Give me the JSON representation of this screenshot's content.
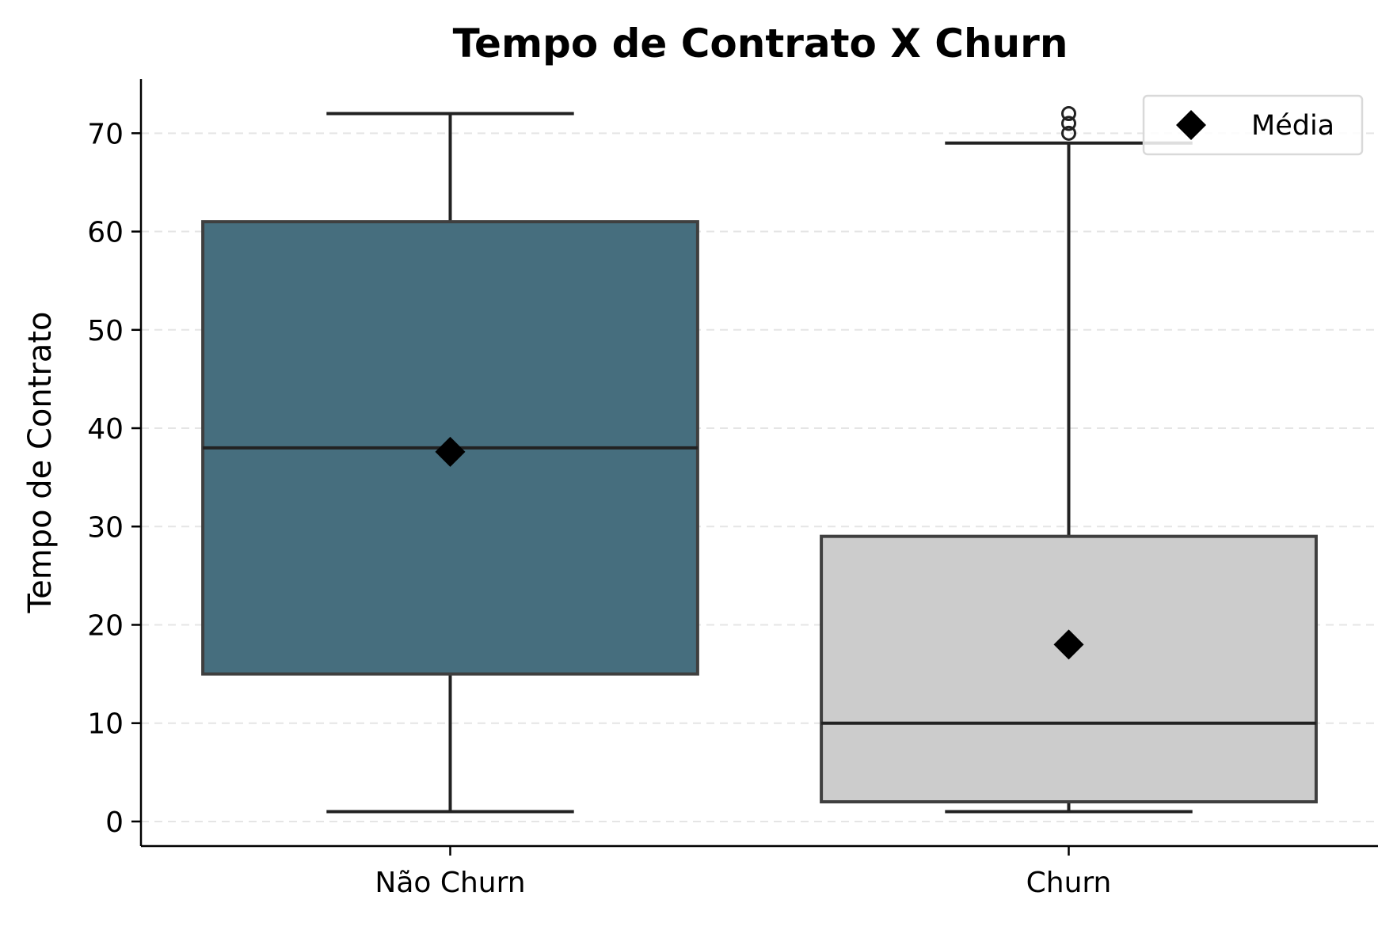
{
  "chart_data": {
    "type": "box",
    "title": "Tempo de Contrato X Churn",
    "xlabel": "",
    "ylabel": "Tempo de Contrato",
    "ylim": [
      -2.5,
      75.5
    ],
    "yticks": [
      0,
      10,
      20,
      30,
      40,
      50,
      60,
      70
    ],
    "grid": {
      "axis": "y",
      "style": "dashed"
    },
    "legend": {
      "position": "top-right",
      "entries": [
        {
          "label": "Média",
          "marker": "diamond"
        }
      ]
    },
    "categories": [
      "Não Churn",
      "Churn"
    ],
    "boxes": [
      {
        "category": "Não Churn",
        "whisker_low": 1,
        "q1": 15,
        "median": 38,
        "q3": 61,
        "whisker_high": 72,
        "mean": 37.6,
        "outliers": [],
        "color": "#466e7e"
      },
      {
        "category": "Churn",
        "whisker_low": 1,
        "q1": 2,
        "median": 10,
        "q3": 29,
        "whisker_high": 69,
        "mean": 18,
        "outliers": [
          70,
          71,
          72
        ],
        "color": "#cccccc"
      }
    ],
    "colors": {
      "box_edge": "#3f3f3f",
      "whisker": "#222222",
      "mean_marker": "#000000",
      "grid": "#e5e5e5",
      "axis": "#000000"
    }
  }
}
